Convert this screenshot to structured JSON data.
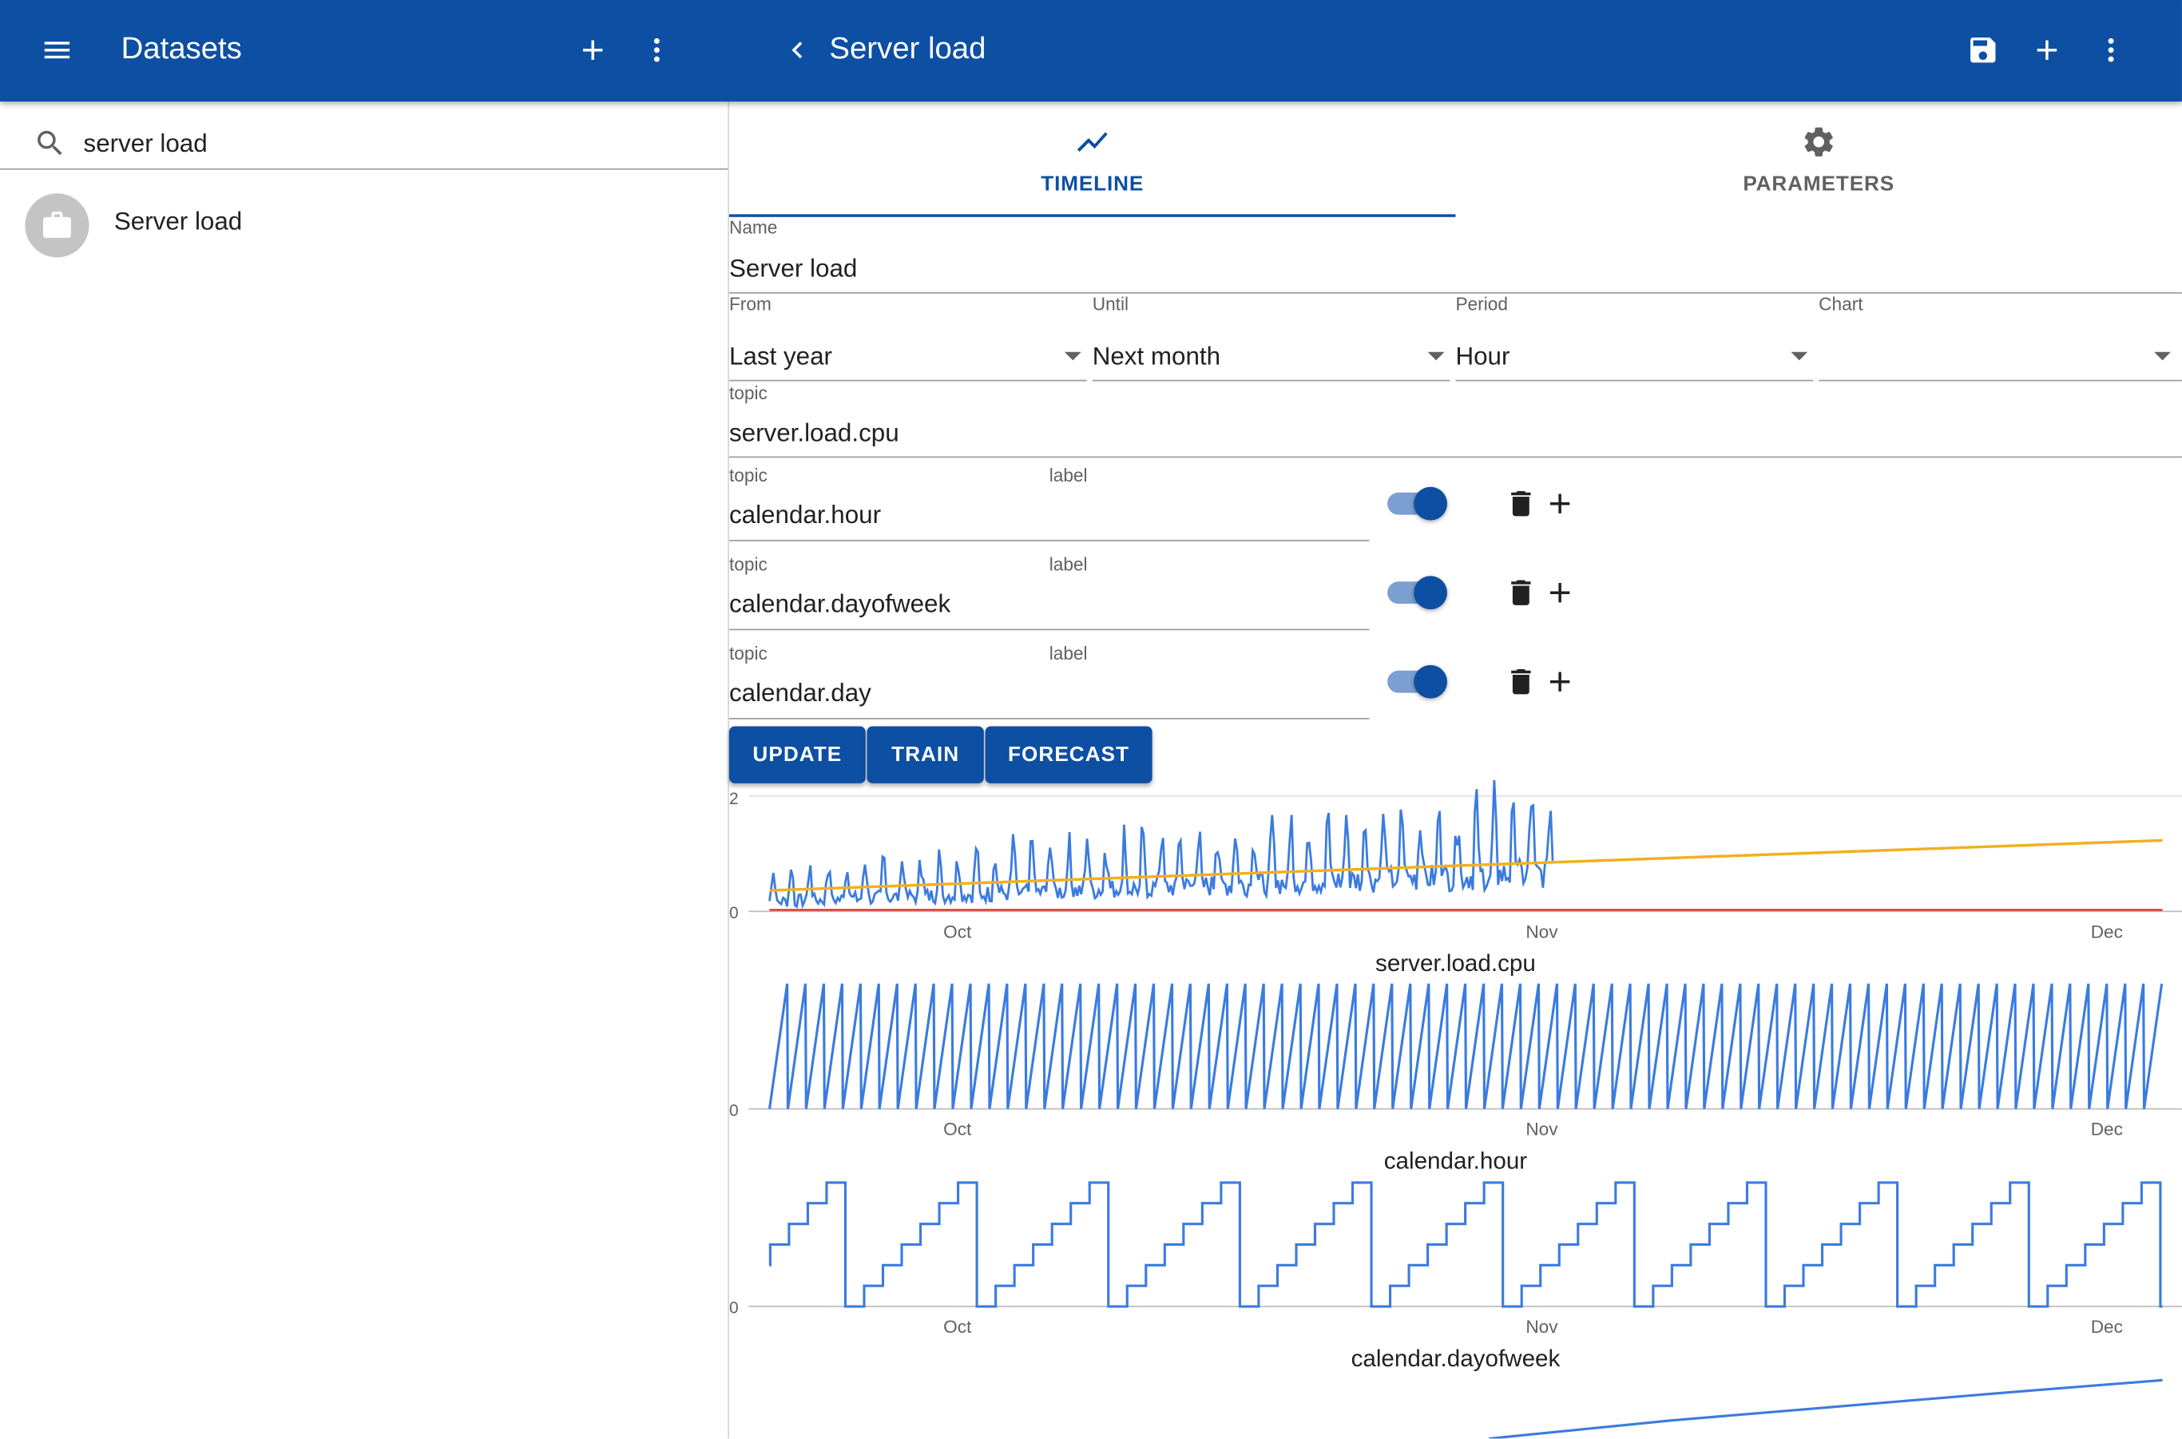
{
  "left_panel": {
    "title": "Datasets",
    "search_value": "server load",
    "items": [
      {
        "label": "Server load"
      }
    ]
  },
  "right_panel": {
    "title": "Server load",
    "tabs": [
      {
        "label": "TIMELINE",
        "active": true
      },
      {
        "label": "PARAMETERS",
        "active": false
      }
    ],
    "form": {
      "name_label": "Name",
      "name_value": "Server load",
      "from_label": "From",
      "from_value": "Last year",
      "until_label": "Until",
      "until_value": "Next month",
      "period_label": "Period",
      "period_value": "Hour",
      "chart_label": "Chart",
      "chart_value": "",
      "topic_label": "topic",
      "topic_value": "server.load.cpu"
    },
    "regressors": [
      {
        "topic_label": "topic",
        "topic_value": "calendar.hour",
        "label_label": "label",
        "label_value": "",
        "enabled": true
      },
      {
        "topic_label": "topic",
        "topic_value": "calendar.dayofweek",
        "label_label": "label",
        "label_value": "",
        "enabled": true
      },
      {
        "topic_label": "topic",
        "topic_value": "calendar.day",
        "label_label": "label",
        "label_value": "",
        "enabled": true
      }
    ],
    "buttons": {
      "update": "UPDATE",
      "train": "TRAIN",
      "forecast": "FORECAST"
    }
  },
  "colors": {
    "primary": "#0d4fa2",
    "series": "#3b7be0",
    "trend": "#f2b01e",
    "baseline": "#d64535"
  },
  "chart_data": [
    {
      "type": "line",
      "xlabel": "server.load.cpu",
      "y_ticks": [
        "0",
        "2"
      ],
      "ylim": [
        0,
        2
      ],
      "x_ticks": [
        "Oct",
        "Nov",
        "Dec"
      ],
      "series": [
        {
          "values": "hourly cpu load, daily spikes of about 0.3–1.6 from mid-Sep to early Nov"
        },
        {
          "values": "linear trend / forecast rising from about 0.35 (mid-Sep) to about 1.2 (early Dec)"
        },
        {
          "values": "constant 0"
        }
      ]
    },
    {
      "type": "line",
      "xlabel": "calendar.hour",
      "y_ticks": [
        "0"
      ],
      "x_ticks": [
        "Oct",
        "Nov",
        "Dec"
      ],
      "series": [
        {
          "values": "sawtooth 0→23 repeating every day"
        }
      ]
    },
    {
      "type": "line",
      "xlabel": "calendar.dayofweek",
      "y_ticks": [
        "0"
      ],
      "x_ticks": [
        "Oct",
        "Nov",
        "Dec"
      ],
      "series": [
        {
          "values": "staircase 0→6 repeating every week"
        }
      ]
    },
    {
      "type": "line",
      "series": [
        {
          "values": "calendar.day, steadily increasing line"
        }
      ]
    }
  ]
}
